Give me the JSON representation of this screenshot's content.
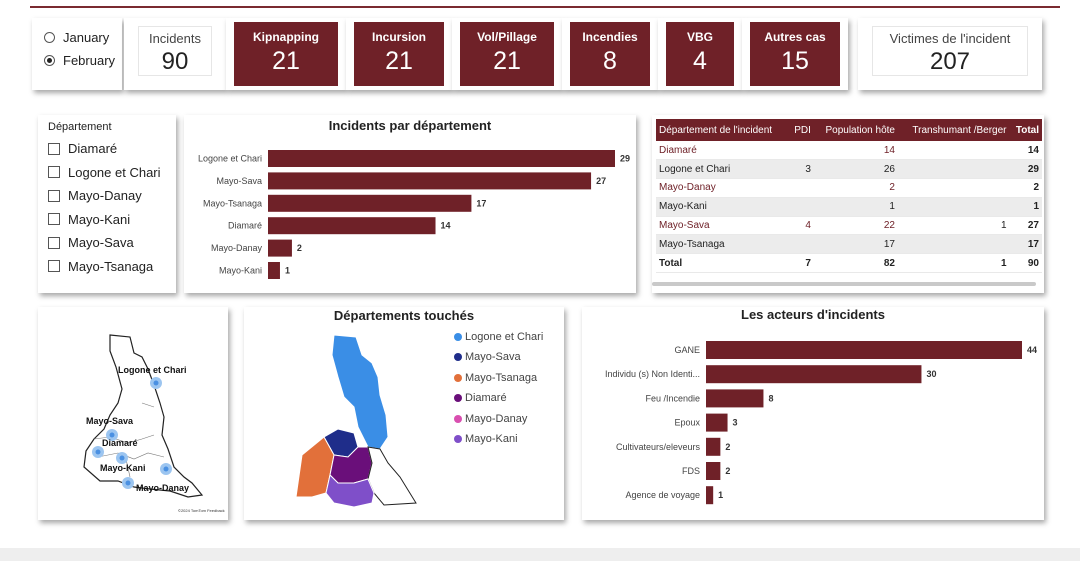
{
  "month_filter": {
    "options": [
      {
        "label": "January",
        "selected": false
      },
      {
        "label": "February",
        "selected": true
      }
    ]
  },
  "kpis": {
    "incidents": {
      "label": "Incidents",
      "value": "90"
    },
    "victims": {
      "label": "Victimes de l'incident",
      "value": "207"
    },
    "categories": [
      {
        "label": "Kipnapping",
        "value": "21"
      },
      {
        "label": "Incursion",
        "value": "21"
      },
      {
        "label": "Vol/Pillage",
        "value": "21"
      },
      {
        "label": "Incendies",
        "value": "8"
      },
      {
        "label": "VBG",
        "value": "4"
      },
      {
        "label": "Autres cas",
        "value": "15"
      }
    ]
  },
  "departement_filter": {
    "title": "Département",
    "items": [
      "Diamaré",
      "Logone et Chari",
      "Mayo-Danay",
      "Mayo-Kani",
      "Mayo-Sava",
      "Mayo-Tsanaga"
    ]
  },
  "chart_data": [
    {
      "type": "bar",
      "orientation": "horizontal",
      "title": "Incidents par département",
      "categories": [
        "Logone et Chari",
        "Mayo-Sava",
        "Mayo-Tsanaga",
        "Diamaré",
        "Mayo-Danay",
        "Mayo-Kani"
      ],
      "values": [
        29,
        27,
        17,
        14,
        2,
        1
      ],
      "color": "#6f2128"
    },
    {
      "type": "bar",
      "orientation": "horizontal",
      "title": "Les acteurs d'incidents",
      "categories": [
        "GANE",
        "Individu (s) Non Identi...",
        "Feu /Incendie",
        "Epoux",
        "Cultivateurs/eleveurs",
        "FDS",
        "Agence de voyage"
      ],
      "values": [
        44,
        30,
        8,
        3,
        2,
        2,
        1
      ],
      "color": "#6f2128"
    }
  ],
  "table": {
    "headers": [
      "Département de l'incident",
      "PDI",
      "Population hôte",
      "Transhumant /Berger",
      "Total"
    ],
    "rows": [
      [
        "Diamaré",
        "",
        "14",
        "",
        "14"
      ],
      [
        "Logone et Chari",
        "3",
        "26",
        "",
        "29"
      ],
      [
        "Mayo-Danay",
        "",
        "2",
        "",
        "2"
      ],
      [
        "Mayo-Kani",
        "",
        "1",
        "",
        "1"
      ],
      [
        "Mayo-Sava",
        "4",
        "22",
        "1",
        "27"
      ],
      [
        "Mayo-Tsanaga",
        "",
        "17",
        "",
        "17"
      ]
    ],
    "total": [
      "Total",
      "7",
      "82",
      "1",
      "90"
    ]
  },
  "map_locations": {
    "labels": [
      "Logone et Chari",
      "Mayo-Sava",
      "Diamaré",
      "Mayo-Kani",
      "Mayo-Danay"
    ],
    "attribution": "©2024 TomTom  Feedback"
  },
  "departements_map": {
    "title": "Départements touchés",
    "legend": [
      {
        "label": "Logone et Chari",
        "color": "#3a8ee6"
      },
      {
        "label": "Mayo-Sava",
        "color": "#1f2d8a"
      },
      {
        "label": "Mayo-Tsanaga",
        "color": "#e2703a"
      },
      {
        "label": "Diamaré",
        "color": "#6a0f7a"
      },
      {
        "label": "Mayo-Danay",
        "color": "#d94fb0"
      },
      {
        "label": "Mayo-Kani",
        "color": "#7f4fc9"
      }
    ]
  }
}
